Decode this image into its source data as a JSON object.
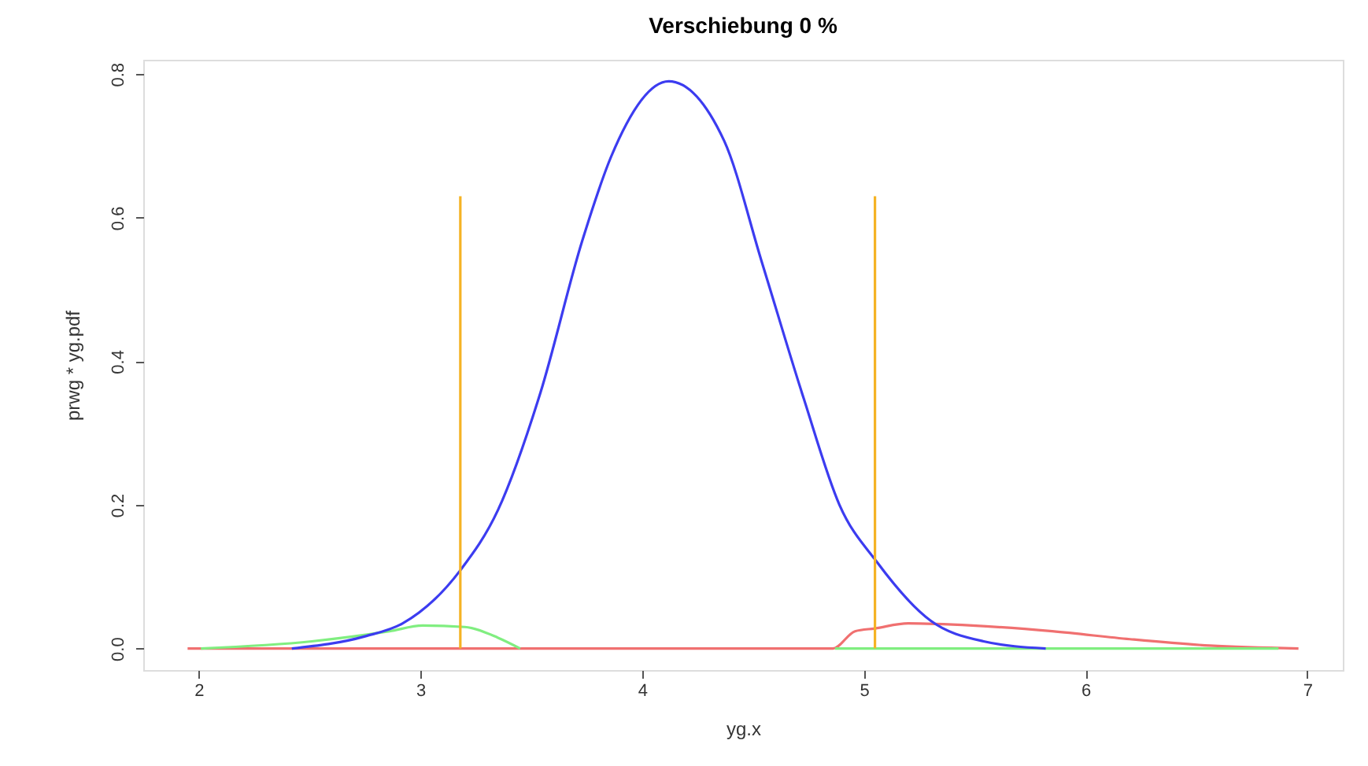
{
  "chart_data": {
    "type": "line",
    "title": "Verschiebung 0 %",
    "xlabel": "yg.x",
    "ylabel": "prwg * yg.pdf",
    "xlim": [
      1.75,
      7.16
    ],
    "ylim": [
      -0.03,
      0.82
    ],
    "xticks": [
      2,
      3,
      4,
      5,
      6,
      7
    ],
    "yticks": [
      {
        "value": 0,
        "label": "0.0"
      },
      {
        "value": 0.2,
        "label": "0.2"
      },
      {
        "value": 0.4,
        "label": "0.4"
      },
      {
        "value": 0.6,
        "label": "0.6"
      },
      {
        "value": 0.8,
        "label": "0.8"
      }
    ],
    "grid": false,
    "marker": "none",
    "line_style": "solid",
    "series": [
      {
        "color": "#f07070",
        "x": [
          1.95,
          4.86,
          4.96,
          5.05,
          5.2,
          5.49,
          5.85,
          6.2,
          6.56,
          6.96
        ],
        "values": [
          0,
          0,
          0.024,
          0.028,
          0.035,
          0.032,
          0.024,
          0.013,
          0.004,
          0
        ]
      },
      {
        "color": "#80ee80",
        "x": [
          2.01,
          2.51,
          2.86,
          3.01,
          3.2,
          3.35,
          3.45,
          4.86,
          4.87,
          6.87
        ],
        "values": [
          0,
          0.01,
          0.024,
          0.032,
          0.03,
          0.015,
          0,
          null,
          0,
          0
        ]
      },
      {
        "color": "#3c3cf0",
        "x": [
          2.42,
          2.75,
          2.92,
          3.18,
          3.35,
          3.54,
          3.73,
          3.86,
          4.12,
          4.37,
          4.54,
          4.73,
          4.89,
          5.06,
          5.3,
          5.54,
          5.82
        ],
        "values": [
          0,
          0.017,
          0.035,
          0.109,
          0.193,
          0.355,
          0.568,
          0.685,
          0.79,
          0.707,
          0.538,
          0.347,
          0.2,
          0.12,
          0.039,
          0.01,
          0
        ]
      },
      {
        "color": "#f5b324",
        "x": [
          3.18,
          3.18
        ],
        "values": [
          0,
          0.63
        ]
      },
      {
        "color": "#f5b324",
        "x": [
          5.05,
          5.05
        ],
        "values": [
          0,
          0.63
        ]
      }
    ]
  }
}
